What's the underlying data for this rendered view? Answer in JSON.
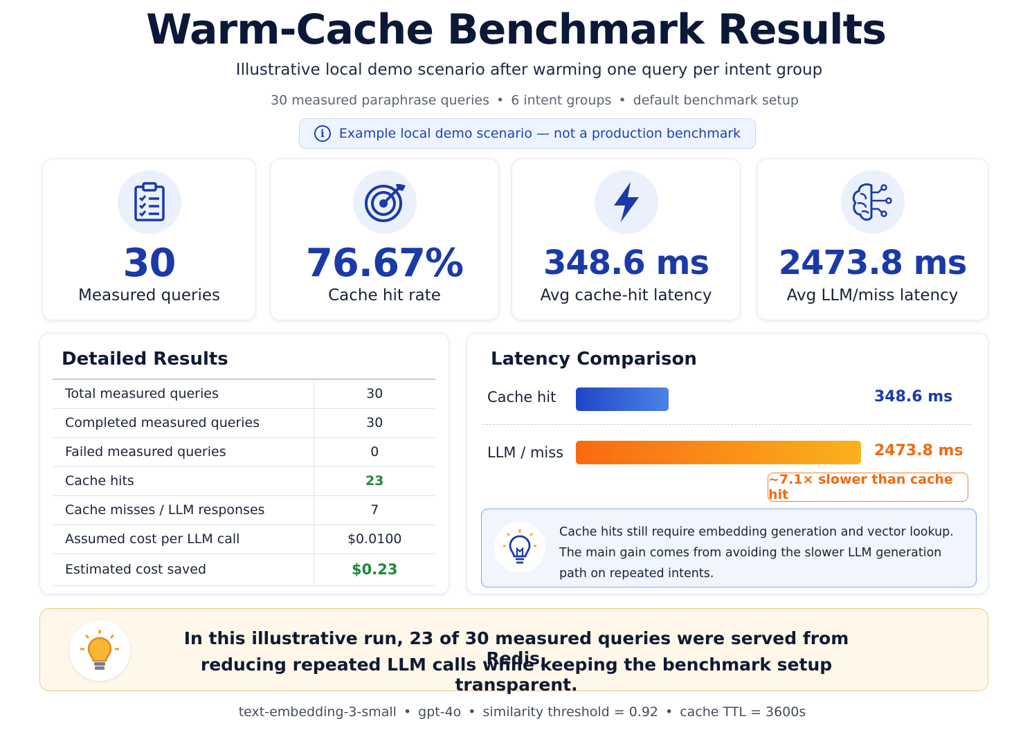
{
  "header": {
    "title": "Warm-Cache Benchmark Results",
    "subtitle": "Illustrative local demo scenario after warming one query per intent group",
    "meta": [
      "30 measured paraphrase queries",
      "6 intent groups",
      "default benchmark setup"
    ],
    "notice": "Example local demo scenario — not a production benchmark"
  },
  "stats": [
    {
      "icon": "clipboard-checklist-icon",
      "value": "30",
      "label": "Measured queries"
    },
    {
      "icon": "target-icon",
      "value": "76.67%",
      "label": "Cache hit rate"
    },
    {
      "icon": "lightning-bolt-icon",
      "value": "348.6 ms",
      "label": "Avg cache-hit latency"
    },
    {
      "icon": "brain-circuit-icon",
      "value": "2473.8 ms",
      "label": "Avg LLM/miss latency"
    }
  ],
  "details": {
    "title": "Detailed Results",
    "rows": [
      {
        "label": "Total measured queries",
        "value": "30"
      },
      {
        "label": "Completed measured queries",
        "value": "30"
      },
      {
        "label": "Failed measured queries",
        "value": "0"
      },
      {
        "label": "Cache hits",
        "value": "23"
      },
      {
        "label": "Cache misses / LLM responses",
        "value": "7"
      },
      {
        "label": "Assumed cost per LLM call",
        "value": "$0.0100"
      },
      {
        "label": "Estimated cost saved",
        "value": "$0.23"
      }
    ]
  },
  "latency": {
    "title": "Latency Comparison",
    "bars": [
      {
        "label": "Cache hit",
        "value_label": "348.6 ms",
        "value": 348.6,
        "color": "#1e46c8"
      },
      {
        "label": "LLM / miss",
        "value_label": "2473.8 ms",
        "value": 2473.8,
        "color": "#f96a10"
      }
    ],
    "slower_badge": "~7.1× slower than cache hit",
    "tip": {
      "icon": "lightbulb-icon",
      "lines": [
        "Cache hits still require embedding generation and vector lookup.",
        "The main gain comes from avoiding the slower LLM generation",
        "path on repeated intents."
      ]
    }
  },
  "summary": {
    "icon": "lightbulb-icon",
    "lines": [
      "In this illustrative run, 23 of 30 measured queries were served from Redis,",
      "reducing repeated LLM calls while keeping the benchmark setup transparent."
    ]
  },
  "footer": [
    "text-embedding-3-small",
    "gpt-4o",
    "similarity threshold = 0.92",
    "cache TTL = 3600s"
  ],
  "colors": {
    "accent_blue": "#1a3aa8",
    "accent_orange": "#f06a10",
    "success_green": "#1d8a3a"
  }
}
